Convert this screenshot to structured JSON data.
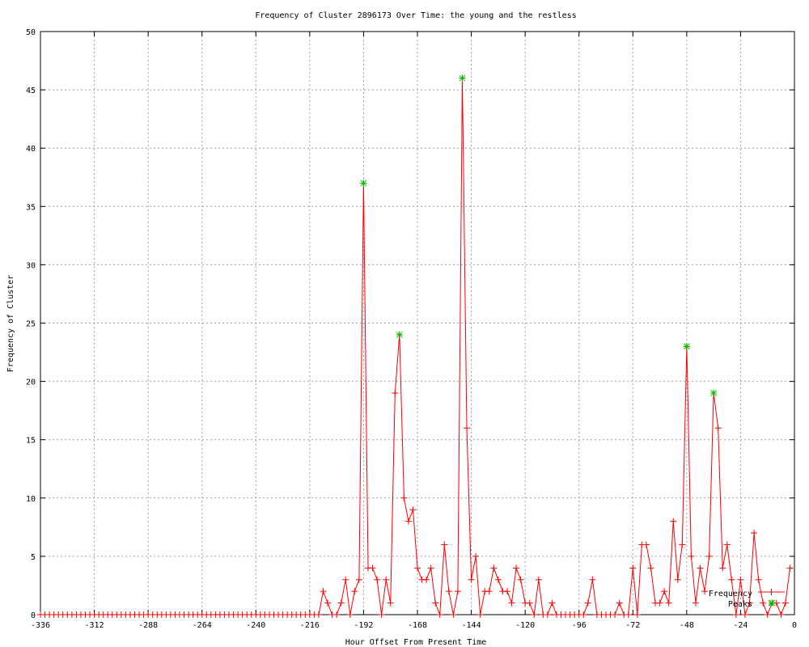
{
  "chart_data": {
    "type": "line",
    "title": "Frequency of Cluster 2896173 Over Time: the young and the restless",
    "xlabel": "Hour Offset From Present Time",
    "ylabel": "Frequency of Cluster",
    "xlim": [
      -336,
      0
    ],
    "ylim": [
      0,
      50
    ],
    "xticks": [
      -336,
      -312,
      -288,
      -264,
      -240,
      -216,
      -192,
      -168,
      -144,
      -120,
      -96,
      -72,
      -48,
      -24,
      0
    ],
    "yticks": [
      0,
      5,
      10,
      15,
      20,
      25,
      30,
      35,
      40,
      45,
      50
    ],
    "grid": true,
    "legend_position": "bottom-right",
    "series": [
      {
        "name": "Frequency",
        "color": "#ff0000",
        "marker": "plus",
        "x": [
          -336,
          -334,
          -332,
          -330,
          -328,
          -326,
          -324,
          -322,
          -320,
          -318,
          -316,
          -314,
          -312,
          -310,
          -308,
          -306,
          -304,
          -302,
          -300,
          -298,
          -296,
          -294,
          -292,
          -290,
          -288,
          -286,
          -284,
          -282,
          -280,
          -278,
          -276,
          -274,
          -272,
          -270,
          -268,
          -266,
          -264,
          -262,
          -260,
          -258,
          -256,
          -254,
          -252,
          -250,
          -248,
          -246,
          -244,
          -242,
          -240,
          -238,
          -236,
          -234,
          -232,
          -230,
          -228,
          -226,
          -224,
          -222,
          -220,
          -218,
          -216,
          -214,
          -212,
          -210,
          -208,
          -206,
          -204,
          -202,
          -200,
          -198,
          -196,
          -194,
          -192,
          -190,
          -188,
          -186,
          -184,
          -182,
          -180,
          -178,
          -176,
          -174,
          -172,
          -170,
          -168,
          -166,
          -164,
          -162,
          -160,
          -158,
          -156,
          -154,
          -152,
          -150,
          -148,
          -146,
          -144,
          -142,
          -140,
          -138,
          -136,
          -134,
          -132,
          -130,
          -128,
          -126,
          -124,
          -122,
          -120,
          -118,
          -116,
          -114,
          -112,
          -110,
          -108,
          -106,
          -104,
          -102,
          -100,
          -98,
          -96,
          -94,
          -92,
          -90,
          -88,
          -86,
          -84,
          -82,
          -80,
          -78,
          -76,
          -74,
          -72,
          -70,
          -68,
          -66,
          -64,
          -62,
          -60,
          -58,
          -56,
          -54,
          -52,
          -50,
          -48,
          -46,
          -44,
          -42,
          -40,
          -38,
          -36,
          -34,
          -32,
          -30,
          -28,
          -26,
          -24,
          -22,
          -20,
          -18,
          -16,
          -14,
          -12,
          -10,
          -8,
          -6,
          -4,
          -2
        ],
        "y": [
          0,
          0,
          0,
          0,
          0,
          0,
          0,
          0,
          0,
          0,
          0,
          0,
          0,
          0,
          0,
          0,
          0,
          0,
          0,
          0,
          0,
          0,
          0,
          0,
          0,
          0,
          0,
          0,
          0,
          0,
          0,
          0,
          0,
          0,
          0,
          0,
          0,
          0,
          0,
          0,
          0,
          0,
          0,
          0,
          0,
          0,
          0,
          0,
          0,
          0,
          0,
          0,
          0,
          0,
          0,
          0,
          0,
          0,
          0,
          0,
          0,
          0,
          0,
          2,
          1,
          0,
          0,
          1,
          3,
          0,
          2,
          3,
          37,
          4,
          4,
          3,
          0,
          3,
          1,
          19,
          24,
          10,
          8,
          9,
          4,
          3,
          3,
          4,
          1,
          0,
          6,
          2,
          0,
          2,
          46,
          16,
          3,
          5,
          0,
          2,
          2,
          4,
          3,
          2,
          2,
          1,
          4,
          3,
          1,
          1,
          0,
          3,
          0,
          0,
          1,
          0,
          0,
          0,
          0,
          0,
          0,
          0,
          1,
          3,
          0,
          0,
          0,
          0,
          0,
          1,
          0,
          0,
          4,
          0,
          6,
          6,
          4,
          1,
          1,
          2,
          1,
          8,
          3,
          6,
          23,
          5,
          1,
          4,
          2,
          5,
          19,
          16,
          4,
          6,
          3,
          0,
          3,
          0,
          1,
          7,
          3,
          1,
          0,
          1,
          1,
          0,
          1,
          4
        ]
      },
      {
        "name": "Peaks",
        "color": "#00c000",
        "marker": "x",
        "x": [
          -192,
          -176,
          -148,
          -48,
          -36,
          -10
        ],
        "y": [
          37,
          24,
          46,
          23,
          19,
          1
        ]
      }
    ]
  }
}
